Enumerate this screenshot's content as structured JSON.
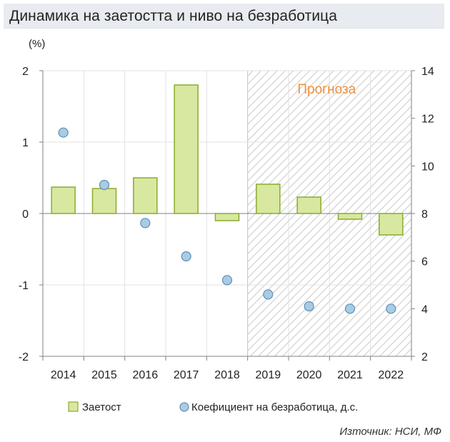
{
  "title": "Динамика на заетостта и ниво на безработица",
  "source": "Източник: НСИ, МФ",
  "chart_data": {
    "type": "bar+scatter",
    "left_unit_label": "(%)",
    "forecast_label": "Прогноза",
    "forecast_start": "2019",
    "categories": [
      "2014",
      "2015",
      "2016",
      "2017",
      "2018",
      "2019",
      "2020",
      "2021",
      "2022"
    ],
    "y_left": {
      "min": -2,
      "max": 2,
      "ticks": [
        "2",
        "1",
        "0",
        "-1",
        "-2"
      ]
    },
    "y_right": {
      "min": 2,
      "max": 14,
      "ticks": [
        "14",
        "12",
        "10",
        "8",
        "6",
        "4",
        "2"
      ]
    },
    "series": [
      {
        "name": "Заетост",
        "kind": "bar",
        "axis": "left",
        "color": "#d8e8a0",
        "border": "#8aab2e",
        "values": [
          0.37,
          0.35,
          0.5,
          1.8,
          -0.1,
          0.41,
          0.23,
          -0.08,
          -0.3
        ]
      },
      {
        "name": "Коефициент на безработица, д.с.",
        "kind": "scatter",
        "axis": "right",
        "color": "#a9cbe3",
        "border": "#5f8fb5",
        "values": [
          11.4,
          9.2,
          7.6,
          6.2,
          5.2,
          4.6,
          4.1,
          4.0,
          4.0
        ]
      }
    ],
    "grid": true,
    "legend_position": "bottom"
  }
}
